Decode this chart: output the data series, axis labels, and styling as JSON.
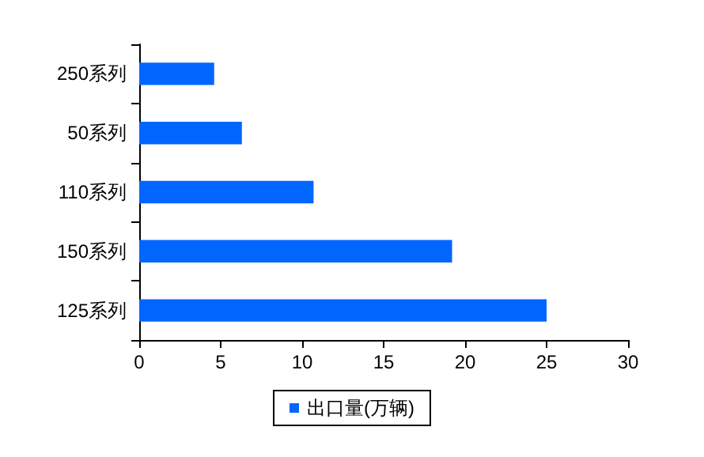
{
  "chart_data": {
    "type": "bar",
    "orientation": "horizontal",
    "categories": [
      "250系列",
      "50系列",
      "110系列",
      "150系列",
      "125系列"
    ],
    "series": [
      {
        "name": "出口量(万辆)",
        "color": "#0066ff",
        "values": [
          4.6,
          6.3,
          10.7,
          19.2,
          25.0
        ]
      }
    ],
    "xlim": [
      0,
      30
    ],
    "xticks": [
      0,
      5,
      10,
      15,
      20,
      25,
      30
    ],
    "grid": false,
    "legend": "bottom"
  }
}
